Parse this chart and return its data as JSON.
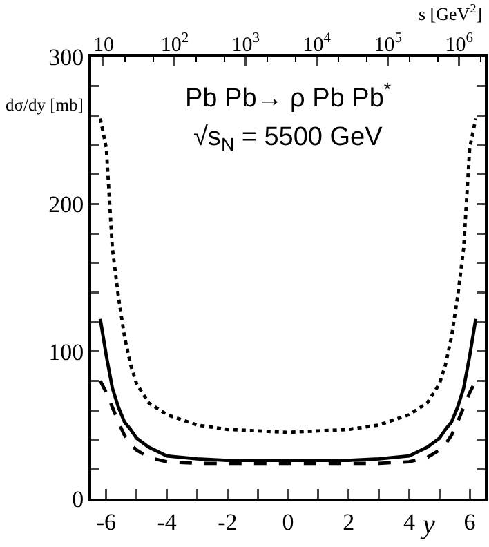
{
  "chart_data": {
    "type": "line",
    "annotations": [
      "Pb Pb→ ρ Pb Pb$^{*}$",
      "√s$_{N}$ = 5500 GeV"
    ],
    "xlabel": "y",
    "ylabel": "dσ/dy [mb]",
    "x2label": "s [GeV$^{2}$]",
    "x": [
      -6.2,
      -6,
      -5.8,
      -5.6,
      -5.4,
      -5.2,
      -5,
      -4.6,
      -4,
      -3,
      -2,
      -1,
      0,
      1,
      2,
      3,
      4,
      4.6,
      5,
      5.2,
      5.4,
      5.6,
      5.8,
      6,
      6.2
    ],
    "series": [
      {
        "color": "#000000",
        "line_style": "dotted",
        "values": [
          258,
          238,
          170,
          137,
          110,
          91,
          78,
          65,
          57,
          50,
          47,
          46,
          45,
          46,
          47,
          50,
          57,
          65,
          78,
          91,
          110,
          137,
          170,
          238,
          258
        ]
      },
      {
        "color": "#000000",
        "line_style": "solid",
        "values": [
          122,
          97,
          75,
          62,
          52,
          47,
          41,
          35,
          29,
          27,
          26,
          26,
          26,
          26,
          26,
          27,
          29,
          35,
          41,
          47,
          52,
          62,
          75,
          97,
          122
        ]
      },
      {
        "color": "#000000",
        "line_style": "dashed",
        "values": [
          80,
          72,
          62,
          52,
          43,
          37,
          33,
          28,
          25,
          24,
          24,
          24,
          24,
          24,
          24,
          24,
          25,
          28,
          33,
          37,
          43,
          52,
          62,
          72,
          80
        ]
      }
    ],
    "xlim": [
      -6.5,
      6.5
    ],
    "xticks": [
      -6,
      {
        "value": -5,
        "label": null
      },
      -4,
      {
        "value": -3,
        "label": null
      },
      -2,
      {
        "value": -1,
        "label": null
      },
      0,
      {
        "value": 1,
        "label": null
      },
      2,
      {
        "value": 3,
        "label": null
      },
      4,
      {
        "value": 5,
        "label": null
      },
      6
    ],
    "ylim": [
      0,
      300
    ],
    "yticks": [
      0,
      {
        "value": 20,
        "label": null
      },
      {
        "value": 40,
        "label": null
      },
      {
        "value": 60,
        "label": null
      },
      {
        "value": 80,
        "label": null
      },
      100,
      {
        "value": 120,
        "label": null
      },
      {
        "value": 140,
        "label": null
      },
      {
        "value": 160,
        "label": null
      },
      {
        "value": 180,
        "label": null
      },
      200,
      {
        "value": 220,
        "label": null
      },
      {
        "value": 240,
        "label": null
      },
      {
        "value": 260,
        "label": null
      },
      {
        "value": 280,
        "label": null
      },
      300
    ],
    "x2lim": [
      6.7,
      2300000
    ],
    "x2ticks": [
      10,
      {
        "value": 100,
        "label": "10$^{2}$"
      },
      {
        "value": 1000,
        "label": "10$^{3}$"
      },
      {
        "value": 10000,
        "label": "10$^{4}$"
      },
      {
        "value": 100000,
        "label": "10$^{5}$"
      },
      {
        "value": 1000000,
        "label": "10$^{6}$"
      }
    ],
    "log": "x2",
    "grid": false,
    "marker": "none"
  }
}
